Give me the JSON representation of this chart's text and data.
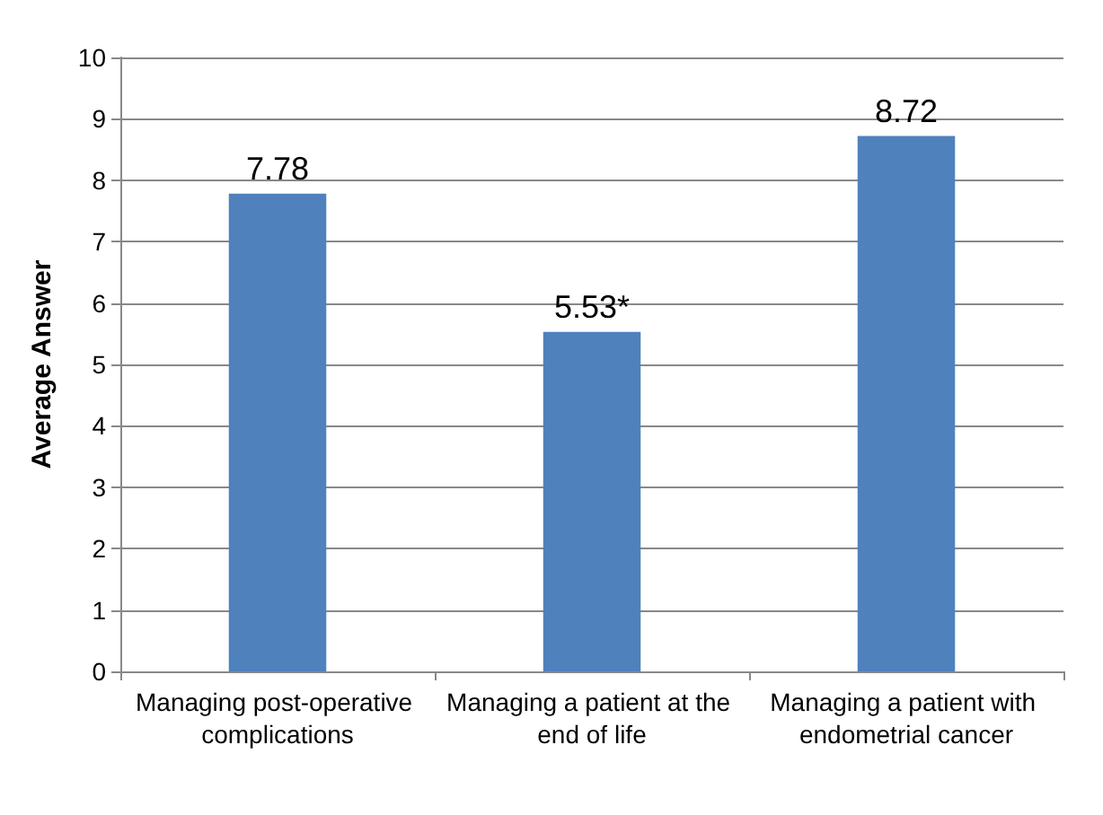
{
  "chart_data": {
    "type": "bar",
    "ylabel": "Average Answer",
    "categories": [
      "Managing post-operative complications",
      "Managing a patient at the end of life",
      "Managing a patient with endometrial cancer"
    ],
    "values": [
      7.78,
      5.53,
      8.72
    ],
    "value_labels": [
      "7.78",
      "5.53*",
      "8.72"
    ],
    "color": "#4f81bd",
    "ylim": [
      0,
      10
    ],
    "yticks": [
      0,
      1,
      2,
      3,
      4,
      5,
      6,
      7,
      8,
      9,
      10
    ],
    "grid": "y"
  }
}
